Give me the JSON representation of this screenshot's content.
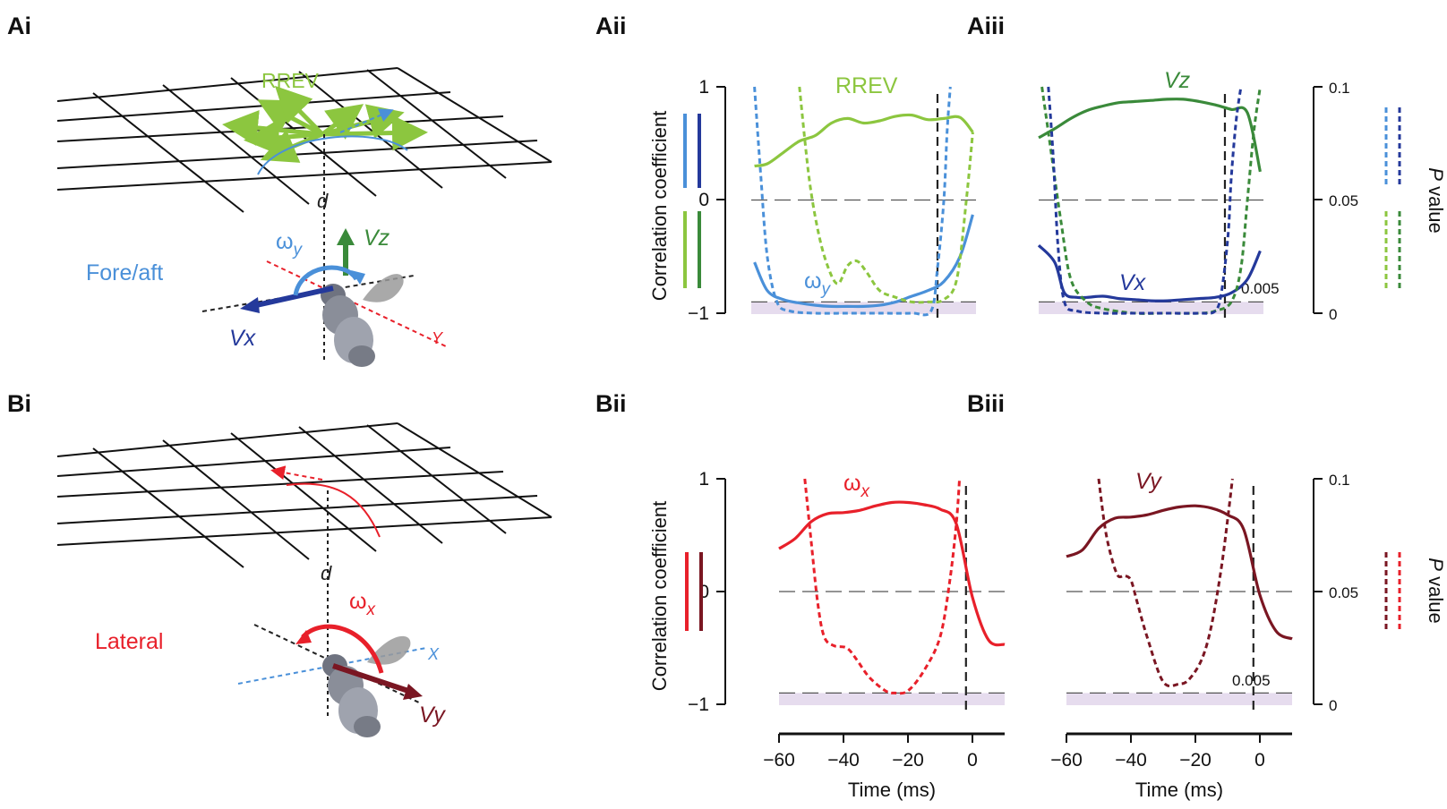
{
  "panel_labels": {
    "Ai": "Ai",
    "Aii": "Aii",
    "Aiii": "Aiii",
    "Bi": "Bi",
    "Bii": "Bii",
    "Biii": "Biii"
  },
  "colors": {
    "rrev": "#8cc63f",
    "vz": "#3a8a3a",
    "omega_y": "#4a90d9",
    "vx": "#24399b",
    "omega_x": "#e8202a",
    "vy": "#7a1622",
    "dashed_vert": "#222222",
    "shade": "#e6dcee"
  },
  "diagram_A": {
    "rrev_label": "RREV",
    "d_label": "d",
    "omega_label": "ω",
    "omega_sub": "y",
    "vz_label": "Vz",
    "vx_label": "Vx",
    "axis_label": "Y",
    "mode_label": "Fore/aft"
  },
  "diagram_B": {
    "d_label": "d",
    "omega_label": "ω",
    "omega_sub": "x",
    "vy_label": "Vy",
    "axis_label": "X",
    "mode_label": "Lateral"
  },
  "axes": {
    "left_ylabel": "Correlation coefficient",
    "right_ylabel_italic": "P",
    "right_ylabel_rest": " value",
    "xlabel": "Time (ms)",
    "yticks": [
      "1",
      "0",
      "−1"
    ],
    "pticks": [
      "0.1",
      "0.05",
      "0"
    ],
    "xticks": [
      "−60",
      "−40",
      "−20",
      "0"
    ],
    "threshold_label": "0.005"
  },
  "chart_data": [
    {
      "id": "Aii",
      "type": "line",
      "xlabel": "Time (ms)",
      "ylabel": "Correlation coefficient",
      "xlim": [
        -60,
        10
      ],
      "ylim": [
        -1,
        1
      ],
      "p_ylim": [
        0,
        0.1
      ],
      "threshold_p": 0.005,
      "event_x": -2,
      "series": [
        {
          "name": "RREV",
          "kind": "correlation",
          "color": "#8cc63f",
          "x": [
            -59,
            -55,
            -50,
            -45,
            -40,
            -35,
            -30,
            -25,
            -20,
            -15,
            -10,
            -5,
            0,
            5,
            9
          ],
          "y": [
            0.3,
            0.32,
            0.42,
            0.52,
            0.57,
            0.68,
            0.72,
            0.68,
            0.7,
            0.74,
            0.75,
            0.71,
            0.72,
            0.73,
            0.6
          ]
        },
        {
          "name": "ω_y",
          "kind": "correlation",
          "color": "#4a90d9",
          "x": [
            -59,
            -55,
            -50,
            -45,
            -40,
            -35,
            -30,
            -25,
            -20,
            -15,
            -10,
            -5,
            0,
            5,
            9
          ],
          "y": [
            -0.55,
            -0.8,
            -0.88,
            -0.91,
            -0.93,
            -0.94,
            -0.94,
            -0.94,
            -0.93,
            -0.9,
            -0.85,
            -0.8,
            -0.72,
            -0.5,
            -0.13
          ]
        },
        {
          "name": "RREV P",
          "kind": "p_value",
          "color": "#8cc63f",
          "x": [
            -45,
            -42,
            -39,
            -36,
            -33,
            -30,
            -27,
            -24,
            -20,
            -15,
            -10,
            -5,
            0,
            4,
            7,
            9
          ],
          "y": [
            0.1,
            0.06,
            0.035,
            0.02,
            0.013,
            0.021,
            0.023,
            0.018,
            0.01,
            0.007,
            0.005,
            0.005,
            0.006,
            0.015,
            0.05,
            0.08
          ]
        },
        {
          "name": "ω_y P",
          "kind": "p_value",
          "color": "#4a90d9",
          "x": [
            -59,
            -57,
            -55,
            -52,
            -48,
            -40,
            -30,
            -20,
            -10,
            -4,
            -2,
            0,
            1,
            2
          ],
          "y": [
            0.1,
            0.06,
            0.025,
            0.005,
            0.001,
            0,
            0,
            0,
            0,
            0.001,
            0.02,
            0.05,
            0.08,
            0.1
          ]
        }
      ]
    },
    {
      "id": "Aiii",
      "type": "line",
      "xlabel": "Time (ms)",
      "p_ylabel": "P value",
      "xlim": [
        -60,
        10
      ],
      "ylim": [
        -1,
        1
      ],
      "p_ylim": [
        0,
        0.1
      ],
      "threshold_p": 0.005,
      "event_x": -2,
      "series": [
        {
          "name": "Vz",
          "kind": "correlation",
          "color": "#3a8a3a",
          "x": [
            -60,
            -55,
            -50,
            -45,
            -40,
            -35,
            -30,
            -25,
            -20,
            -15,
            -10,
            -5,
            0,
            5,
            9
          ],
          "y": [
            0.55,
            0.63,
            0.72,
            0.79,
            0.83,
            0.86,
            0.87,
            0.88,
            0.89,
            0.89,
            0.87,
            0.84,
            0.8,
            0.77,
            0.25
          ]
        },
        {
          "name": "Vx",
          "kind": "correlation",
          "color": "#24399b",
          "x": [
            -60,
            -55,
            -52,
            -48,
            -45,
            -40,
            -35,
            -30,
            -25,
            -20,
            -15,
            -10,
            -5,
            0,
            5,
            9
          ],
          "y": [
            -0.4,
            -0.55,
            -0.82,
            -0.86,
            -0.86,
            -0.85,
            -0.87,
            -0.88,
            -0.89,
            -0.89,
            -0.88,
            -0.87,
            -0.86,
            -0.82,
            -0.7,
            -0.45
          ]
        },
        {
          "name": "Vz P",
          "kind": "p_value",
          "color": "#3a8a3a",
          "x": [
            -59,
            -56,
            -53,
            -50,
            -45,
            -40,
            -30,
            -20,
            -10,
            -5,
            0,
            3,
            5,
            7,
            9
          ],
          "y": [
            0.1,
            0.07,
            0.04,
            0.015,
            0.005,
            0.002,
            0,
            0,
            0,
            0.001,
            0.005,
            0.02,
            0.05,
            0.08,
            0.1
          ]
        },
        {
          "name": "Vx P",
          "kind": "p_value",
          "color": "#24399b",
          "x": [
            -57,
            -55.5,
            -54,
            -52,
            -48,
            -40,
            -30,
            -20,
            -10,
            -5,
            -3,
            -1,
            0,
            1.5,
            3
          ],
          "y": [
            0.1,
            0.07,
            0.03,
            0.005,
            0.001,
            0,
            0,
            0,
            0,
            0.001,
            0.01,
            0.035,
            0.06,
            0.085,
            0.1
          ]
        }
      ]
    },
    {
      "id": "Bii",
      "type": "line",
      "xlabel": "Time (ms)",
      "ylabel": "Correlation coefficient",
      "xlim": [
        -60,
        10
      ],
      "ylim": [
        -1,
        1
      ],
      "p_ylim": [
        0,
        0.1
      ],
      "threshold_p": 0.005,
      "event_x": -2,
      "series": [
        {
          "name": "ω_x",
          "kind": "correlation",
          "color": "#e8202a",
          "x": [
            -60,
            -55,
            -50,
            -45,
            -40,
            -35,
            -30,
            -25,
            -20,
            -15,
            -10,
            -5,
            0,
            5,
            10
          ],
          "y": [
            0.38,
            0.47,
            0.62,
            0.69,
            0.7,
            0.72,
            0.76,
            0.79,
            0.79,
            0.77,
            0.73,
            0.6,
            -0.05,
            -0.43,
            -0.47
          ]
        },
        {
          "name": "ω_x P",
          "kind": "p_value",
          "color": "#e8202a",
          "x": [
            -52,
            -50,
            -48,
            -46,
            -43,
            -39,
            -36,
            -32,
            -27,
            -24,
            -20,
            -15,
            -10,
            -7,
            -5,
            -4
          ],
          "y": [
            0.1,
            0.072,
            0.045,
            0.03,
            0.026,
            0.025,
            0.02,
            0.012,
            0.006,
            0.005,
            0.006,
            0.015,
            0.03,
            0.055,
            0.08,
            0.1
          ]
        }
      ]
    },
    {
      "id": "Biii",
      "type": "line",
      "xlabel": "Time (ms)",
      "p_ylabel": "P value",
      "xlim": [
        -60,
        10
      ],
      "ylim": [
        -1,
        1
      ],
      "p_ylim": [
        0,
        0.1
      ],
      "threshold_p": 0.005,
      "event_x": -2,
      "series": [
        {
          "name": "Vy",
          "kind": "correlation",
          "color": "#7a1622",
          "x": [
            -60,
            -55,
            -50,
            -45,
            -40,
            -35,
            -30,
            -25,
            -20,
            -15,
            -10,
            -5,
            0,
            5,
            10
          ],
          "y": [
            0.31,
            0.37,
            0.56,
            0.65,
            0.66,
            0.68,
            0.72,
            0.75,
            0.76,
            0.74,
            0.68,
            0.55,
            -0.03,
            -0.35,
            -0.42
          ]
        },
        {
          "name": "Vy P",
          "kind": "p_value",
          "color": "#7a1622",
          "x": [
            -50,
            -48,
            -46,
            -44,
            -42,
            -40,
            -38,
            -35,
            -30,
            -25,
            -22,
            -18,
            -15,
            -12,
            -10,
            -8.5
          ],
          "y": [
            0.1,
            0.078,
            0.065,
            0.057,
            0.057,
            0.055,
            0.045,
            0.03,
            0.01,
            0.009,
            0.011,
            0.02,
            0.035,
            0.06,
            0.082,
            0.1
          ]
        }
      ]
    }
  ]
}
